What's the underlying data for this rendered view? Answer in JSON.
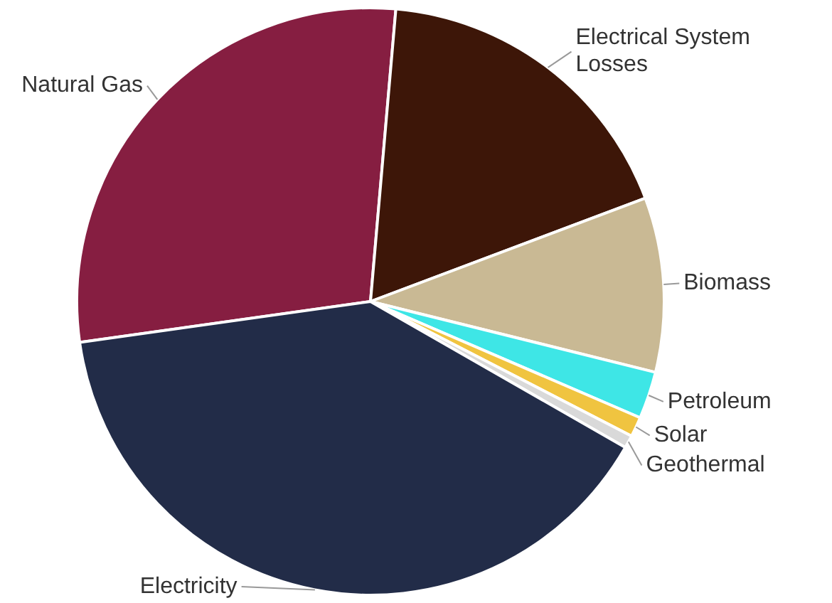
{
  "chart_data": {
    "type": "pie",
    "categories": [
      "Natural Gas",
      "Electrical System Losses",
      "Biomass",
      "Petroleum",
      "Solar",
      "Geothermal",
      "Electricity"
    ],
    "values": [
      28.6,
      17.9,
      9.6,
      2.6,
      1.1,
      0.7,
      39.5
    ],
    "colors": [
      "#861e41",
      "#3d1608",
      "#c9b994",
      "#3ee6e6",
      "#f0c440",
      "#d9d9d9",
      "#222c48"
    ],
    "legend": false
  }
}
